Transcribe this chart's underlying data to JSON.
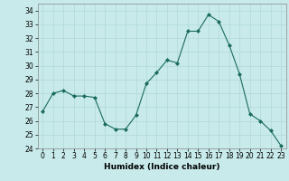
{
  "x": [
    0,
    1,
    2,
    3,
    4,
    5,
    6,
    7,
    8,
    9,
    10,
    11,
    12,
    13,
    14,
    15,
    16,
    17,
    18,
    19,
    20,
    21,
    22,
    23
  ],
  "y": [
    26.7,
    28.0,
    28.2,
    27.8,
    27.8,
    27.7,
    25.8,
    25.4,
    25.4,
    26.4,
    28.7,
    29.5,
    30.4,
    30.2,
    32.5,
    32.5,
    33.7,
    33.2,
    31.5,
    29.4,
    26.5,
    26.0,
    25.3,
    24.2
  ],
  "line_color": "#1a6b5a",
  "marker": "D",
  "marker_size": 2,
  "bg_color": "#c8eaea",
  "grid_color": "#b0d8d8",
  "xlabel": "Humidex (Indice chaleur)",
  "xlim": [
    -0.5,
    23.5
  ],
  "ylim": [
    24,
    34.5
  ],
  "yticks": [
    24,
    25,
    26,
    27,
    28,
    29,
    30,
    31,
    32,
    33,
    34
  ],
  "xticks": [
    0,
    1,
    2,
    3,
    4,
    5,
    6,
    7,
    8,
    9,
    10,
    11,
    12,
    13,
    14,
    15,
    16,
    17,
    18,
    19,
    20,
    21,
    22,
    23
  ],
  "tick_fontsize": 5.5,
  "xlabel_fontsize": 6.5
}
